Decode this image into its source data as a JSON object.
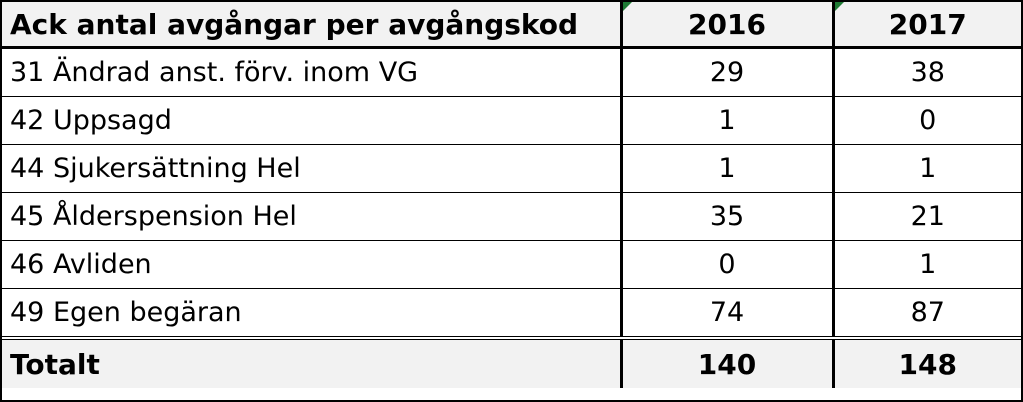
{
  "table": {
    "header": {
      "label": "Ack antal avgångar per avgångskod",
      "years": [
        "2016",
        "2017"
      ]
    },
    "rows": [
      {
        "label": "31 Ändrad anst. förv. inom VG",
        "values": [
          "29",
          "38"
        ]
      },
      {
        "label": "42 Uppsagd",
        "values": [
          "1",
          "0"
        ]
      },
      {
        "label": "44 Sjukersättning Hel",
        "values": [
          "1",
          "1"
        ]
      },
      {
        "label": "45 Ålderspension Hel",
        "values": [
          "35",
          "21"
        ]
      },
      {
        "label": "46 Avliden",
        "values": [
          "0",
          "1"
        ]
      },
      {
        "label": "49 Egen begäran",
        "values": [
          "74",
          "87"
        ]
      }
    ],
    "total": {
      "label": "Totalt",
      "values": [
        "140",
        "148"
      ]
    }
  },
  "colors": {
    "header_bg": "#f2f2f2",
    "border": "#000000",
    "comment_marker": "#1e7a34"
  }
}
